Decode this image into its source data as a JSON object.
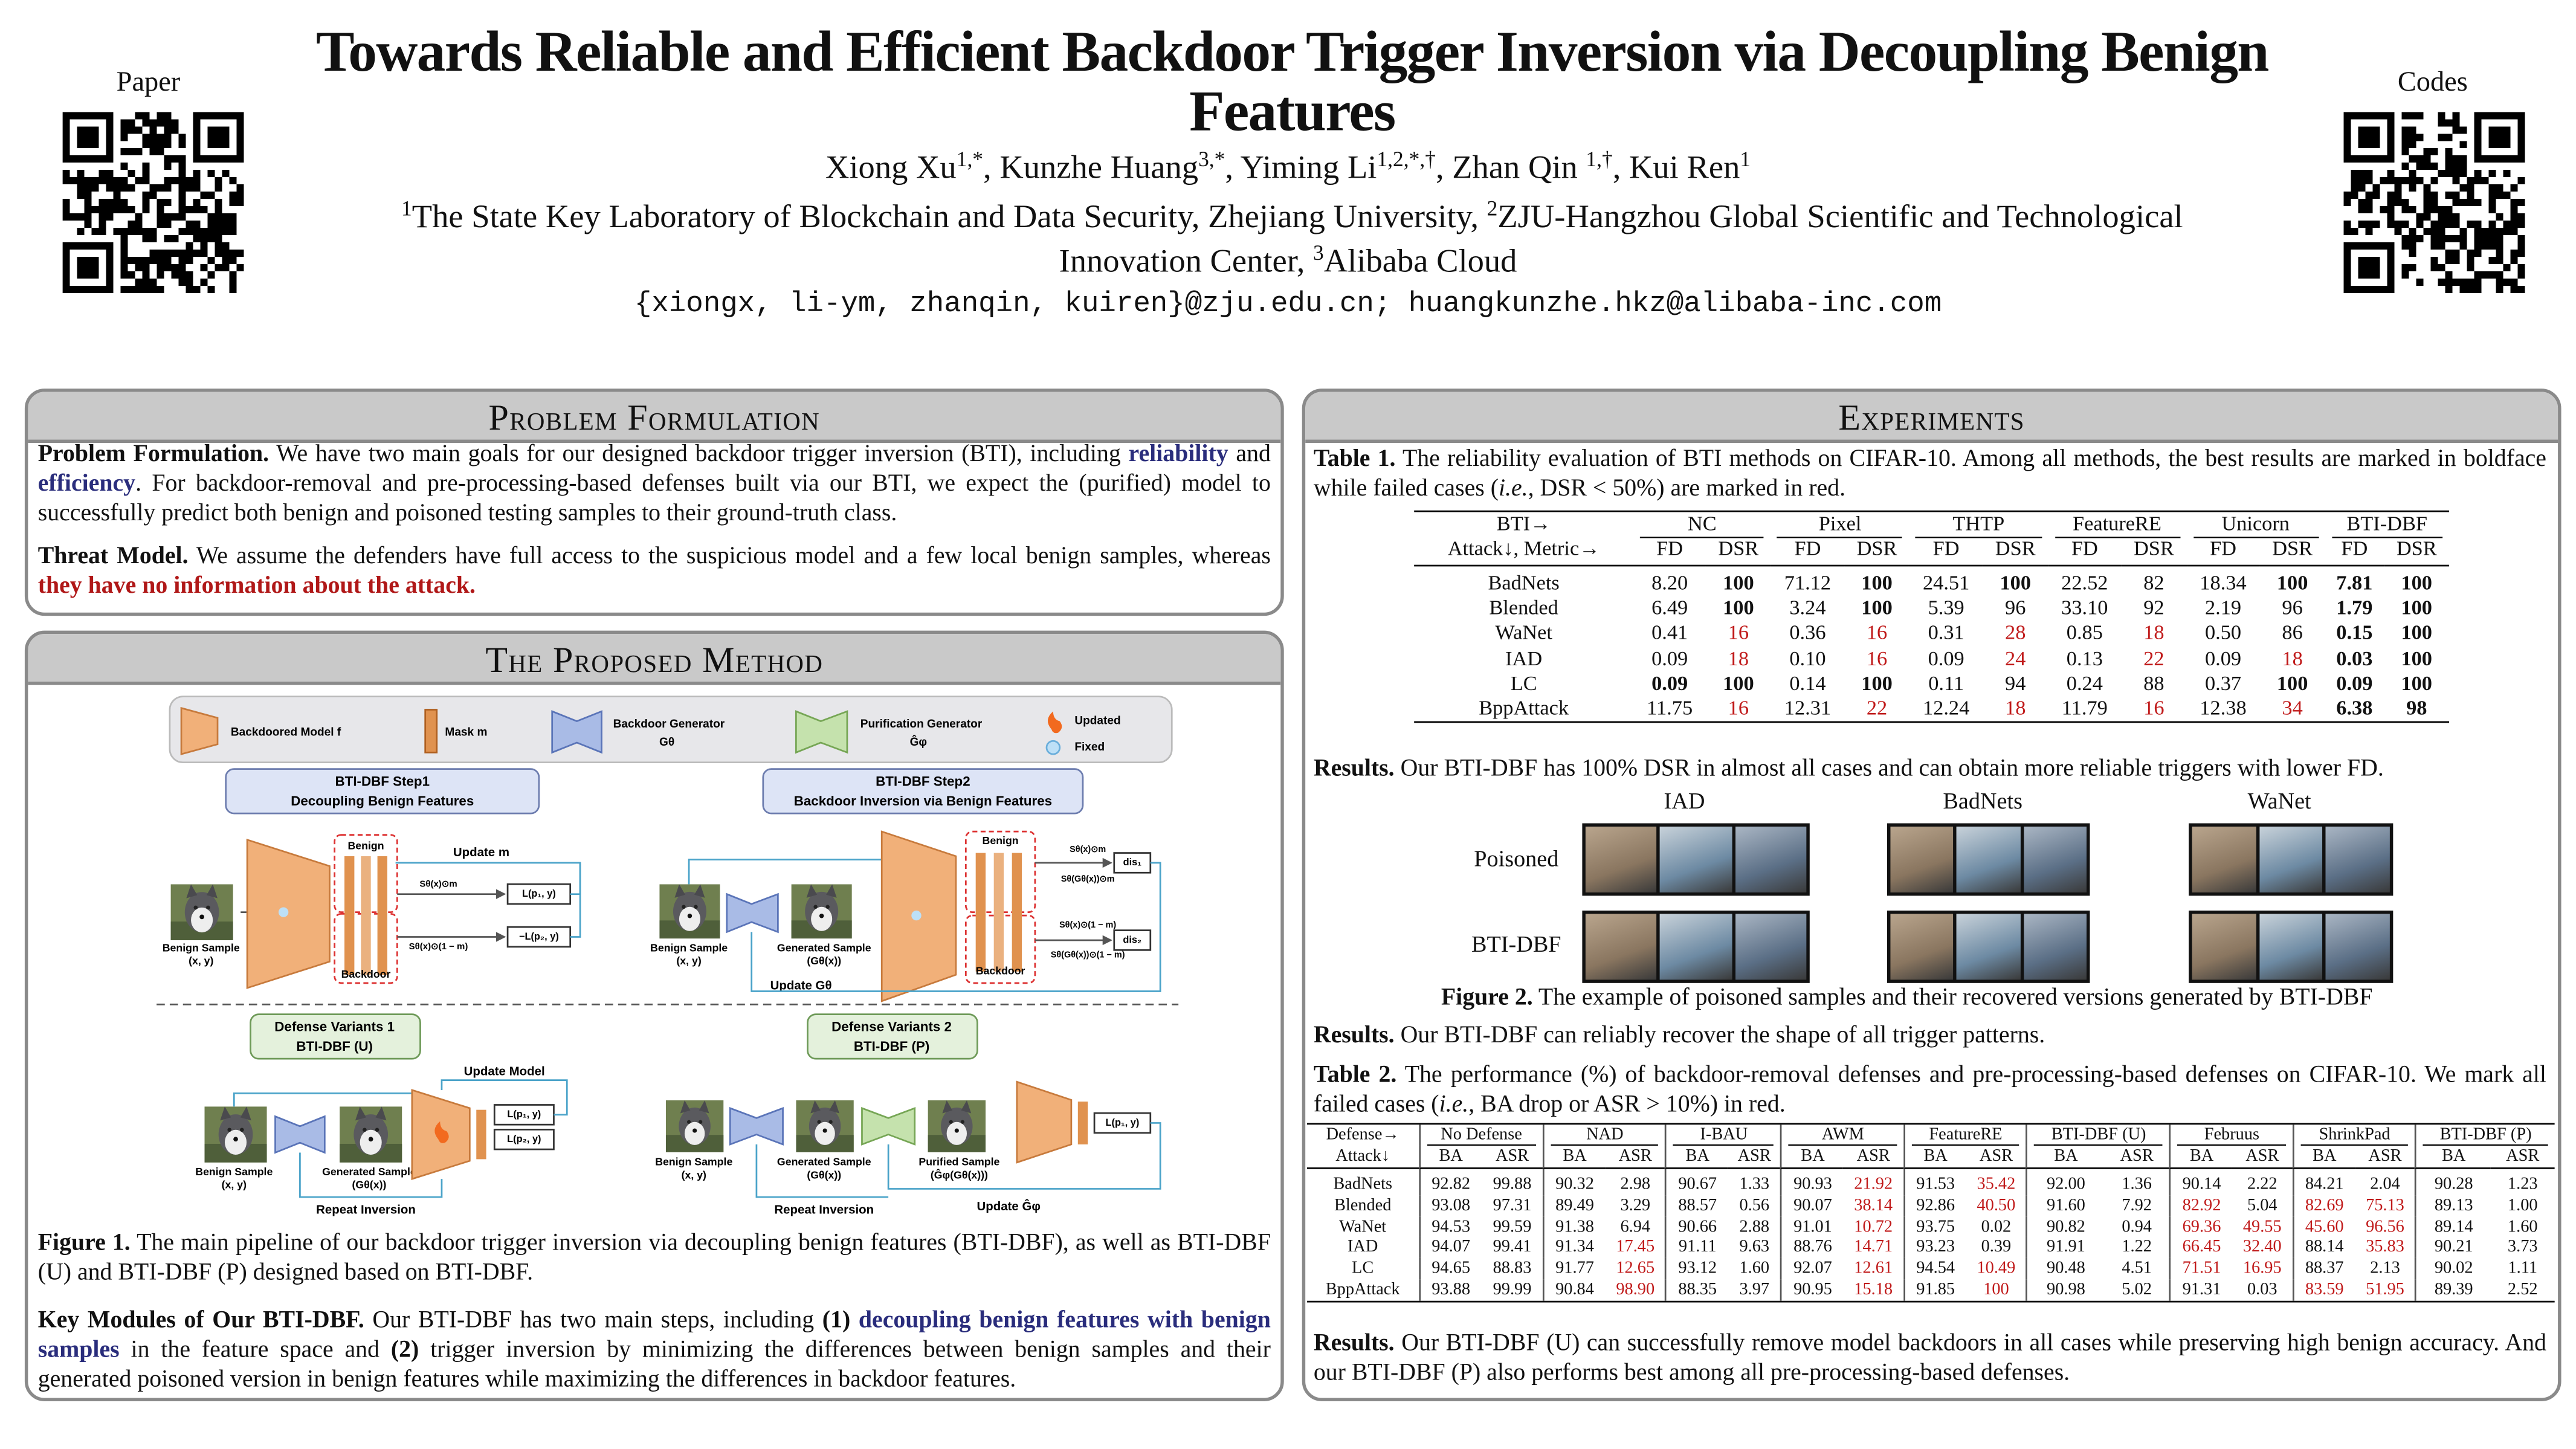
{
  "header": {
    "paper_label": "Paper",
    "code_label": "Codes",
    "title": "Towards Reliable and Efficient Backdoor Trigger Inversion via Decoupling Benign Features",
    "authors": [
      {
        "name": "Xiong Xu",
        "sup": "1,*"
      },
      {
        "name": ", Kunzhe Huang",
        "sup": "3,*"
      },
      {
        "name": ", Yiming Li",
        "sup": "1,2,*,†"
      },
      {
        "name": ", Zhan Qin ",
        "sup": "1,†"
      },
      {
        "name": ", Kui Ren",
        "sup": "1"
      }
    ],
    "affiliations": [
      {
        "sup": "1",
        "text": "The State Key Laboratory of Blockchain and Data Security, Zhejiang University,"
      },
      {
        "sup": "2",
        "text": "ZJU-Hangzhou Global Scientific and Technological Innovation Center,"
      },
      {
        "sup": "3",
        "text": "Alibaba Cloud"
      }
    ],
    "emails": "{xiongx, li-ym, zhanqin, kuiren}@zju.edu.cn; huangkunzhe.hkz@alibaba-inc.com"
  },
  "problem": {
    "title": "Problem Formulation",
    "paragraphs": [
      {
        "runs": [
          {
            "text": "Problem Formulation.",
            "style": "bold"
          },
          {
            "text": " We have two main goals for our designed backdoor trigger inversion (BTI), including "
          },
          {
            "text": "reliability",
            "style": "blue"
          },
          {
            "text": " and "
          },
          {
            "text": "efficiency",
            "style": "blue"
          },
          {
            "text": ". For backdoor-removal and pre-processing-based defenses built via our BTI, we expect the (purified) model to successfully predict both benign and poisoned testing samples to their ground-truth class."
          }
        ]
      },
      {
        "runs": [
          {
            "text": "Threat Model.",
            "style": "bold"
          },
          {
            "text": " We assume the defenders have full access to the suspicious model and a few local benign samples, whereas "
          },
          {
            "text": "they have no information about the attack.",
            "style": "red"
          }
        ]
      }
    ]
  },
  "method": {
    "title": "The Proposed Method",
    "figure": {
      "legend": {
        "model": "Backdoored Model f",
        "mask": "Mask m",
        "generator": "Backdoor Generator",
        "generator_sym": "Gθ",
        "purifier": "Purification Generator",
        "purifier_sym": "Ĝφ",
        "updated": "Updated",
        "fixed": "Fixed"
      },
      "step1": [
        "BTI-DBF Step1",
        "Decoupling Benign Features"
      ],
      "step2": [
        "BTI-DBF Step2",
        "Backdoor Inversion via Benign Features"
      ],
      "variant1": [
        "Defense Variants 1",
        "BTI-DBF (U)"
      ],
      "variant2": [
        "Defense Variants 2",
        "BTI-DBF (P)"
      ],
      "labels": {
        "benign_sample": "Benign Sample",
        "xy": "(x, y)",
        "generated_sample": "Generated Sample",
        "g_x": "(Gθ(x))",
        "purified_sample": "Purified Sample",
        "gg_x": "(Ĝφ(Gθ(x)))",
        "benign": "Benign",
        "backdoor": "Backdoor",
        "update_m": "Update m",
        "update_g": "Update Gθ",
        "update_model": "Update Model",
        "update_p": "Update Ĝφ",
        "repeat": "Repeat Inversion",
        "s_m": "Sθ(x)⊙m",
        "s_1m": "Sθ(x)⊙(1 − m)",
        "sg_m": "Sθ(Gθ(x))⊙m",
        "sg_1m": "Sθ(Gθ(x))⊙(1 − m)",
        "loss1": "L(p₁, y)",
        "loss2": "−L(p₂, y)",
        "loss2b": "L(p₂, y)",
        "dis1": "dis₁",
        "dis2": "dis₂"
      }
    },
    "caption": {
      "runs": [
        {
          "text": "Figure 1.",
          "style": "bold"
        },
        {
          "text": " The main pipeline of our backdoor trigger inversion via decoupling benign features (BTI-DBF), as well as BTI-DBF (U) and BTI-DBF (P) designed based on BTI-DBF."
        }
      ]
    },
    "paragraphs": [
      {
        "runs": [
          {
            "text": "Key Modules of Our BTI-DBF.",
            "style": "bold"
          },
          {
            "text": " Our BTI-DBF has two main steps, including "
          },
          {
            "text": "(1)",
            "style": "bold"
          },
          {
            "text": " "
          },
          {
            "text": "decoupling benign features with benign samples",
            "style": "blue"
          },
          {
            "text": " in the feature space and "
          },
          {
            "text": "(2)",
            "style": "bold"
          },
          {
            "text": " trigger inversion by minimizing the differences between benign samples and their generated poisoned version in benign features while maximizing the differences in backdoor features."
          }
        ]
      }
    ]
  },
  "experiments": {
    "title": "Experiments",
    "table1": {
      "caption": {
        "runs": [
          {
            "text": "Table 1.",
            "style": "bold"
          },
          {
            "text": " The reliability evaluation of BTI methods on CIFAR-10. Among all methods, the best results are marked in boldface while failed cases ("
          },
          {
            "text": "i.e.",
            "style": "italic"
          },
          {
            "text": ", DSR < 50%) are marked in red."
          }
        ]
      },
      "corner": [
        "BTI→",
        "Attack↓, Metric→"
      ],
      "groups": [
        "NC",
        "Pixel",
        "THTP",
        "FeatureRE",
        "Unicorn",
        "BTI-DBF"
      ],
      "metrics": [
        "FD",
        "DSR"
      ],
      "rows": [
        {
          "name": "BadNets",
          "cells": [
            "8.20",
            "100",
            "71.12",
            "100",
            "24.51",
            "100",
            "22.52",
            "82",
            "18.34",
            "100",
            "7.81",
            "100"
          ],
          "bold": [
            1,
            3,
            5,
            9,
            10,
            11
          ],
          "red": []
        },
        {
          "name": "Blended",
          "cells": [
            "6.49",
            "100",
            "3.24",
            "100",
            "5.39",
            "96",
            "33.10",
            "92",
            "2.19",
            "96",
            "1.79",
            "100"
          ],
          "bold": [
            1,
            3,
            10,
            11
          ],
          "red": []
        },
        {
          "name": "WaNet",
          "cells": [
            "0.41",
            "16",
            "0.36",
            "16",
            "0.31",
            "28",
            "0.85",
            "18",
            "0.50",
            "86",
            "0.15",
            "100"
          ],
          "bold": [
            10,
            11
          ],
          "red": [
            1,
            3,
            5,
            7
          ]
        },
        {
          "name": "IAD",
          "cells": [
            "0.09",
            "18",
            "0.10",
            "16",
            "0.09",
            "24",
            "0.13",
            "22",
            "0.09",
            "18",
            "0.03",
            "100"
          ],
          "bold": [
            10,
            11
          ],
          "red": [
            1,
            3,
            5,
            7,
            9
          ]
        },
        {
          "name": "LC",
          "cells": [
            "0.09",
            "100",
            "0.14",
            "100",
            "0.11",
            "94",
            "0.24",
            "88",
            "0.37",
            "100",
            "0.09",
            "100"
          ],
          "bold": [
            0,
            1,
            3,
            9,
            10,
            11
          ],
          "red": []
        },
        {
          "name": "BppAttack",
          "cells": [
            "11.75",
            "16",
            "12.31",
            "22",
            "12.24",
            "18",
            "11.79",
            "16",
            "12.38",
            "34",
            "6.38",
            "98"
          ],
          "bold": [
            10,
            11
          ],
          "red": [
            1,
            3,
            5,
            7,
            9
          ]
        }
      ]
    },
    "results1": {
      "runs": [
        {
          "text": "Results.",
          "style": "bold"
        },
        {
          "text": " Our BTI-DBF has 100% DSR in almost all cases and can obtain more reliable triggers with lower FD."
        }
      ]
    },
    "figure2": {
      "columns": [
        "IAD",
        "BadNets",
        "WaNet"
      ],
      "rows": [
        "Poisoned",
        "BTI-DBF"
      ],
      "caption": {
        "runs": [
          {
            "text": "Figure 2.",
            "style": "bold"
          },
          {
            "text": " The example of poisoned samples and their recovered versions generated by BTI-DBF"
          }
        ]
      }
    },
    "results2": {
      "runs": [
        {
          "text": "Results.",
          "style": "bold"
        },
        {
          "text": " Our BTI-DBF can reliably recover the shape of all trigger patterns."
        }
      ]
    },
    "table2": {
      "caption": {
        "runs": [
          {
            "text": "Table 2.",
            "style": "bold"
          },
          {
            "text": " The performance (%) of backdoor-removal defenses and pre-processing-based defenses on CIFAR-10. We mark all failed cases ("
          },
          {
            "text": "i.e.",
            "style": "italic"
          },
          {
            "text": ", BA drop or ASR > 10%) in red."
          }
        ]
      },
      "corner": [
        "Defense→",
        "Attack↓"
      ],
      "groups": [
        "No Defense",
        "NAD",
        "I-BAU",
        "AWM",
        "FeatureRE",
        "BTI-DBF (U)",
        "Februus",
        "ShrinkPad",
        "BTI-DBF (P)"
      ],
      "metrics": [
        "BA",
        "ASR"
      ],
      "rows": [
        {
          "name": "BadNets",
          "cells": [
            "92.82",
            "99.88",
            "90.32",
            "2.98",
            "90.67",
            "1.33",
            "90.93",
            "21.92",
            "91.53",
            "35.42",
            "92.00",
            "1.36",
            "90.14",
            "2.22",
            "84.21",
            "2.04",
            "90.28",
            "1.23"
          ],
          "bold": [],
          "red": [
            7,
            9
          ]
        },
        {
          "name": "Blended",
          "cells": [
            "93.08",
            "97.31",
            "89.49",
            "3.29",
            "88.57",
            "0.56",
            "90.07",
            "38.14",
            "92.86",
            "40.50",
            "91.60",
            "7.92",
            "82.92",
            "5.04",
            "82.69",
            "75.13",
            "89.13",
            "1.00"
          ],
          "bold": [],
          "red": [
            7,
            9,
            12,
            14,
            15
          ]
        },
        {
          "name": "WaNet",
          "cells": [
            "94.53",
            "99.59",
            "91.38",
            "6.94",
            "90.66",
            "2.88",
            "91.01",
            "10.72",
            "93.75",
            "0.02",
            "90.82",
            "0.94",
            "69.36",
            "49.55",
            "45.60",
            "96.56",
            "89.14",
            "1.60"
          ],
          "bold": [],
          "red": [
            7,
            12,
            13,
            14,
            15
          ]
        },
        {
          "name": "IAD",
          "cells": [
            "94.07",
            "99.41",
            "91.34",
            "17.45",
            "91.11",
            "9.63",
            "88.76",
            "14.71",
            "93.23",
            "0.39",
            "91.91",
            "1.22",
            "66.45",
            "32.40",
            "88.14",
            "35.83",
            "90.21",
            "3.73"
          ],
          "bold": [],
          "red": [
            3,
            7,
            12,
            13,
            15
          ]
        },
        {
          "name": "LC",
          "cells": [
            "94.65",
            "88.83",
            "91.77",
            "12.65",
            "93.12",
            "1.60",
            "92.07",
            "12.61",
            "94.54",
            "10.49",
            "90.48",
            "4.51",
            "71.51",
            "16.95",
            "88.37",
            "2.13",
            "90.02",
            "1.11"
          ],
          "bold": [],
          "red": [
            3,
            7,
            9,
            12,
            13
          ]
        },
        {
          "name": "BppAttack",
          "cells": [
            "93.88",
            "99.99",
            "90.84",
            "98.90",
            "88.35",
            "3.97",
            "90.95",
            "15.18",
            "91.85",
            "100",
            "90.98",
            "5.02",
            "91.31",
            "0.03",
            "83.59",
            "51.95",
            "89.39",
            "2.52"
          ],
          "bold": [],
          "red": [
            3,
            7,
            9,
            14,
            15
          ]
        }
      ]
    },
    "results3": {
      "runs": [
        {
          "text": "Results.",
          "style": "bold"
        },
        {
          "text": " Our BTI-DBF (U) can successfully remove model backdoors in all cases while preserving high benign accuracy. And our BTI-DBF (P) also performs best among all pre-processing-based defenses."
        }
      ]
    }
  }
}
